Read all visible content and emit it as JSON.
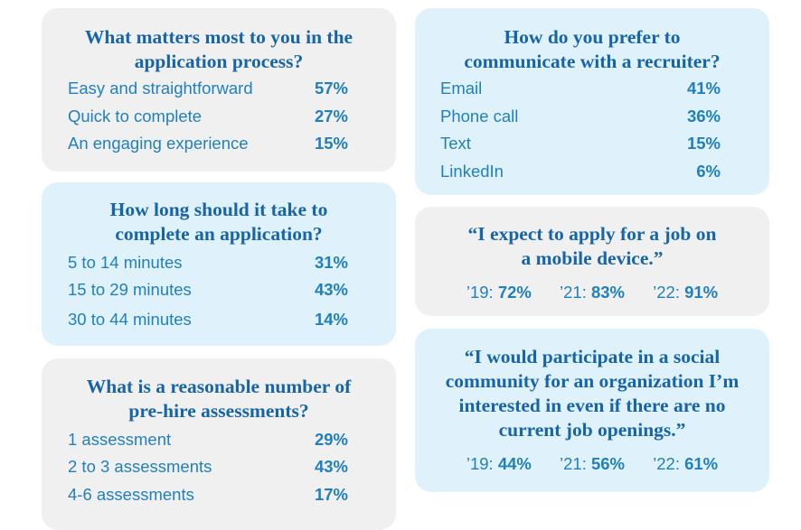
{
  "cards": {
    "matters": {
      "title_line1": "What matters most to you in the",
      "title_line2": "application process?",
      "items": [
        {
          "label": "Easy and straightforward",
          "pct": "57%"
        },
        {
          "label": "Quick to complete",
          "pct": "27%"
        },
        {
          "label": "An engaging experience",
          "pct": "15%"
        }
      ]
    },
    "howlong": {
      "title_line1": "How long should it take to",
      "title_line2": "complete an application?",
      "items": [
        {
          "label": "5 to 14 minutes",
          "pct": "31%"
        },
        {
          "label": "15 to 29 minutes",
          "pct": "43%"
        },
        {
          "label": "30 to 44 minutes",
          "pct": "14%"
        }
      ]
    },
    "assessments": {
      "title_line1": "What is a reasonable number of",
      "title_line2": "pre-hire assessments?",
      "items": [
        {
          "label": "1 assessment",
          "pct": "29%"
        },
        {
          "label": "2 to 3 assessments",
          "pct": "43%"
        },
        {
          "label": "4-6 assessments",
          "pct": "17%"
        }
      ]
    },
    "communicate": {
      "title_line1": "How do you prefer to",
      "title_line2": "communicate with a recruiter?",
      "items": [
        {
          "label": "Email",
          "pct": "41%"
        },
        {
          "label": "Phone call",
          "pct": "36%"
        },
        {
          "label": "Text",
          "pct": "15%"
        },
        {
          "label": "LinkedIn",
          "pct": "6%"
        }
      ]
    },
    "mobile": {
      "title_line1": "“I expect to apply for a job on",
      "title_line2": "a mobile device.”",
      "years": [
        {
          "year": "’19:",
          "value": "72%"
        },
        {
          "year": "’21:",
          "value": "83%"
        },
        {
          "year": "’22:",
          "value": "91%"
        }
      ]
    },
    "community": {
      "title_line1": "“I would participate in a social",
      "title_line2": "community for an organization I’m",
      "title_line3": "interested in even if there are no",
      "title_line4": "current job openings.”",
      "years": [
        {
          "year": "’19:",
          "value": "44%"
        },
        {
          "year": "’21:",
          "value": "56%"
        },
        {
          "year": "’22:",
          "value": "61%"
        }
      ]
    }
  },
  "colors": {
    "title": "#1765a8",
    "text": "#2080bf",
    "gray_card": "#f0f0f0",
    "blue_card": "#dff1fb"
  }
}
